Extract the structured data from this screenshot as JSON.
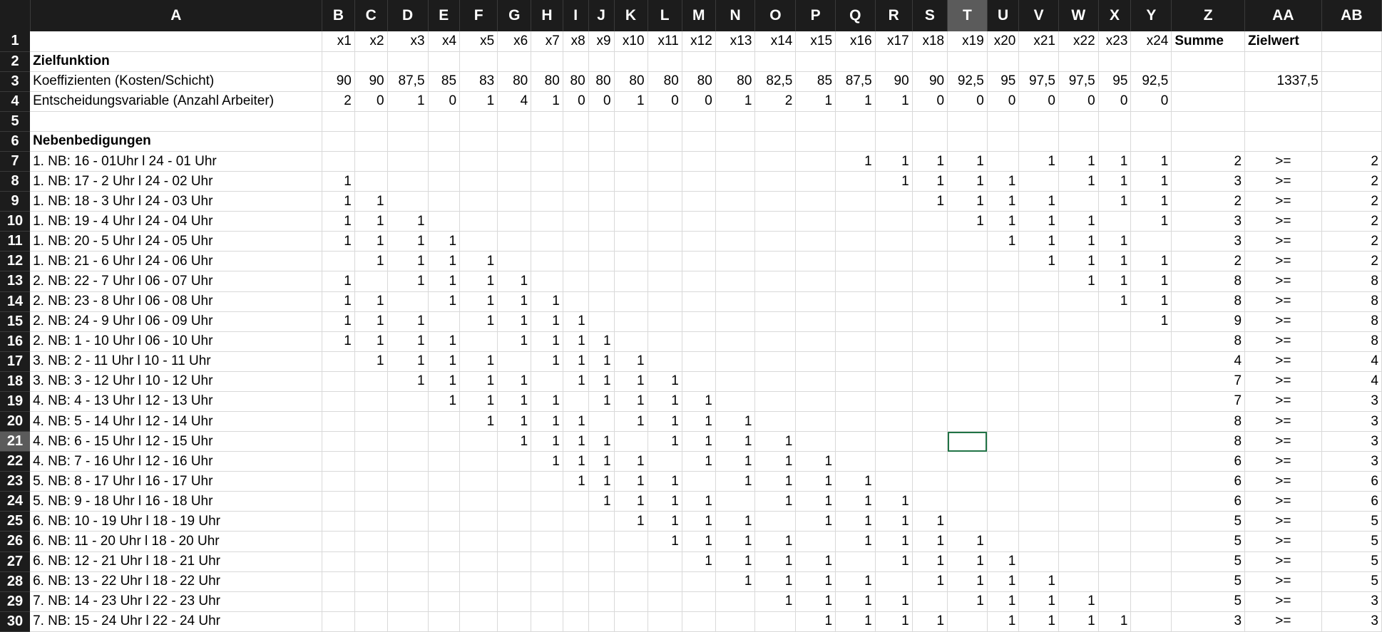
{
  "sheet": {
    "columns": [
      "A",
      "B",
      "C",
      "D",
      "E",
      "F",
      "G",
      "H",
      "I",
      "J",
      "K",
      "L",
      "M",
      "N",
      "O",
      "P",
      "Q",
      "R",
      "S",
      "T",
      "U",
      "V",
      "W",
      "X",
      "Y",
      "Z",
      "AA",
      "AB"
    ],
    "selected_column": "T",
    "selected_row": 21,
    "rows": [
      {
        "n": 1,
        "A": "",
        "B": "x1",
        "C": "x2",
        "D": "x3",
        "E": "x4",
        "F": "x5",
        "G": "x6",
        "H": "x7",
        "I": "x8",
        "J": "x9",
        "K": "x10",
        "L": "x11",
        "M": "x12",
        "N": "x13",
        "O": "x14",
        "P": "x15",
        "Q": "x16",
        "R": "x17",
        "S": "x18",
        "T": "x19",
        "U": "x20",
        "V": "x21",
        "W": "x22",
        "X": "x23",
        "Y": "x24",
        "Z": "Summe",
        "AA": "Zielwert",
        "AB": ""
      },
      {
        "n": 2,
        "A": "Zielfunktion"
      },
      {
        "n": 3,
        "A": "Koeffizienten (Kosten/Schicht)",
        "B": "90",
        "C": "90",
        "D": "87,5",
        "E": "85",
        "F": "83",
        "G": "80",
        "H": "80",
        "I": "80",
        "J": "80",
        "K": "80",
        "L": "80",
        "M": "80",
        "N": "80",
        "O": "82,5",
        "P": "85",
        "Q": "87,5",
        "R": "90",
        "S": "90",
        "T": "92,5",
        "U": "95",
        "V": "97,5",
        "W": "97,5",
        "X": "95",
        "Y": "92,5",
        "AA": "1337,5"
      },
      {
        "n": 4,
        "A": "Entscheidungsvariable (Anzahl Arbeiter)",
        "B": "2",
        "C": "0",
        "D": "1",
        "E": "0",
        "F": "1",
        "G": "4",
        "H": "1",
        "I": "0",
        "J": "0",
        "K": "1",
        "L": "0",
        "M": "0",
        "N": "1",
        "O": "2",
        "P": "1",
        "Q": "1",
        "R": "1",
        "S": "0",
        "T": "0",
        "U": "0",
        "V": "0",
        "W": "0",
        "X": "0",
        "Y": "0"
      },
      {
        "n": 5
      },
      {
        "n": 6,
        "A": "Nebenbedigungen"
      },
      {
        "n": 7,
        "A": "1. NB: 16 - 01Uhr  l 24 - 01 Uhr",
        "Q": "1",
        "R": "1",
        "S": "1",
        "T": "1",
        "V": "1",
        "W": "1",
        "X": "1",
        "Y": "1",
        "Z": "2",
        "AA": ">=",
        "AB": "2"
      },
      {
        "n": 8,
        "A": "1. NB: 17 - 2 Uhr  l 24 - 02 Uhr",
        "B": "1",
        "R": "1",
        "S": "1",
        "T": "1",
        "U": "1",
        "W": "1",
        "X": "1",
        "Y": "1",
        "Z": "3",
        "AA": ">=",
        "AB": "2"
      },
      {
        "n": 9,
        "A": "1. NB: 18 - 3 Uhr  l 24 - 03 Uhr",
        "B": "1",
        "C": "1",
        "S": "1",
        "T": "1",
        "U": "1",
        "V": "1",
        "X": "1",
        "Y": "1",
        "Z": "2",
        "AA": ">=",
        "AB": "2"
      },
      {
        "n": 10,
        "A": "1. NB: 19 - 4 Uhr  l 24 - 04 Uhr",
        "B": "1",
        "C": "1",
        "D": "1",
        "T": "1",
        "U": "1",
        "V": "1",
        "W": "1",
        "Y": "1",
        "Z": "3",
        "AA": ">=",
        "AB": "2"
      },
      {
        "n": 11,
        "A": "1. NB: 20 - 5 Uhr  l 24 - 05 Uhr",
        "B": "1",
        "C": "1",
        "D": "1",
        "E": "1",
        "U": "1",
        "V": "1",
        "W": "1",
        "X": "1",
        "Z": "3",
        "AA": ">=",
        "AB": "2"
      },
      {
        "n": 12,
        "A": "1. NB: 21 - 6 Uhr  l 24 - 06 Uhr",
        "C": "1",
        "D": "1",
        "E": "1",
        "F": "1",
        "V": "1",
        "W": "1",
        "X": "1",
        "Y": "1",
        "Z": "2",
        "AA": ">=",
        "AB": "2"
      },
      {
        "n": 13,
        "A": "2. NB: 22 - 7 Uhr  l 06 - 07 Uhr",
        "B": "1",
        "D": "1",
        "E": "1",
        "F": "1",
        "G": "1",
        "W": "1",
        "X": "1",
        "Y": "1",
        "Z": "8",
        "AA": ">=",
        "AB": "8"
      },
      {
        "n": 14,
        "A": "2. NB: 23 - 8 Uhr  l 06 - 08 Uhr",
        "B": "1",
        "C": "1",
        "E": "1",
        "F": "1",
        "G": "1",
        "H": "1",
        "X": "1",
        "Y": "1",
        "Z": "8",
        "AA": ">=",
        "AB": "8"
      },
      {
        "n": 15,
        "A": "2. NB: 24 - 9 Uhr  l 06 - 09 Uhr",
        "B": "1",
        "C": "1",
        "D": "1",
        "F": "1",
        "G": "1",
        "H": "1",
        "I": "1",
        "Y": "1",
        "Z": "9",
        "AA": ">=",
        "AB": "8"
      },
      {
        "n": 16,
        "A": "2. NB: 1 - 10 Uhr  l 06 - 10 Uhr",
        "B": "1",
        "C": "1",
        "D": "1",
        "E": "1",
        "G": "1",
        "H": "1",
        "I": "1",
        "J": "1",
        "Z": "8",
        "AA": ">=",
        "AB": "8"
      },
      {
        "n": 17,
        "A": "3. NB: 2 - 11 Uhr  l 10 - 11 Uhr",
        "C": "1",
        "D": "1",
        "E": "1",
        "F": "1",
        "H": "1",
        "I": "1",
        "J": "1",
        "K": "1",
        "Z": "4",
        "AA": ">=",
        "AB": "4"
      },
      {
        "n": 18,
        "A": "3. NB: 3 - 12 Uhr  l 10 - 12 Uhr",
        "D": "1",
        "E": "1",
        "F": "1",
        "G": "1",
        "I": "1",
        "J": "1",
        "K": "1",
        "L": "1",
        "Z": "7",
        "AA": ">=",
        "AB": "4"
      },
      {
        "n": 19,
        "A": "4. NB: 4 - 13 Uhr  l 12 - 13 Uhr",
        "E": "1",
        "F": "1",
        "G": "1",
        "H": "1",
        "J": "1",
        "K": "1",
        "L": "1",
        "M": "1",
        "Z": "7",
        "AA": ">=",
        "AB": "3"
      },
      {
        "n": 20,
        "A": "4. NB: 5 - 14 Uhr  l 12 - 14 Uhr",
        "F": "1",
        "G": "1",
        "H": "1",
        "I": "1",
        "K": "1",
        "L": "1",
        "M": "1",
        "N": "1",
        "Z": "8",
        "AA": ">=",
        "AB": "3"
      },
      {
        "n": 21,
        "A": "4. NB: 6 - 15 Uhr  l 12 - 15 Uhr",
        "G": "1",
        "H": "1",
        "I": "1",
        "J": "1",
        "L": "1",
        "M": "1",
        "N": "1",
        "O": "1",
        "Z": "8",
        "AA": ">=",
        "AB": "3"
      },
      {
        "n": 22,
        "A": "4. NB: 7 - 16 Uhr  l 12 - 16 Uhr",
        "H": "1",
        "I": "1",
        "J": "1",
        "K": "1",
        "M": "1",
        "N": "1",
        "O": "1",
        "P": "1",
        "Z": "6",
        "AA": ">=",
        "AB": "3"
      },
      {
        "n": 23,
        "A": "5. NB: 8 - 17 Uhr  l 16 - 17 Uhr",
        "I": "1",
        "J": "1",
        "K": "1",
        "L": "1",
        "N": "1",
        "O": "1",
        "P": "1",
        "Q": "1",
        "Z": "6",
        "AA": ">=",
        "AB": "6"
      },
      {
        "n": 24,
        "A": "5. NB: 9 - 18 Uhr  l 16 - 18 Uhr",
        "J": "1",
        "K": "1",
        "L": "1",
        "M": "1",
        "O": "1",
        "P": "1",
        "Q": "1",
        "R": "1",
        "Z": "6",
        "AA": ">=",
        "AB": "6"
      },
      {
        "n": 25,
        "A": "6. NB: 10 - 19 Uhr  l 18 - 19 Uhr",
        "K": "1",
        "L": "1",
        "M": "1",
        "N": "1",
        "P": "1",
        "Q": "1",
        "R": "1",
        "S": "1",
        "Z": "5",
        "AA": ">=",
        "AB": "5"
      },
      {
        "n": 26,
        "A": "6. NB: 11 - 20 Uhr  l 18 - 20 Uhr",
        "L": "1",
        "M": "1",
        "N": "1",
        "O": "1",
        "Q": "1",
        "R": "1",
        "S": "1",
        "T": "1",
        "Z": "5",
        "AA": ">=",
        "AB": "5"
      },
      {
        "n": 27,
        "A": "6. NB: 12 - 21 Uhr  l 18 - 21 Uhr",
        "M": "1",
        "N": "1",
        "O": "1",
        "P": "1",
        "R": "1",
        "S": "1",
        "T": "1",
        "U": "1",
        "Z": "5",
        "AA": ">=",
        "AB": "5"
      },
      {
        "n": 28,
        "A": "6. NB: 13 - 22 Uhr  l 18 - 22 Uhr",
        "N": "1",
        "O": "1",
        "P": "1",
        "Q": "1",
        "S": "1",
        "T": "1",
        "U": "1",
        "V": "1",
        "Z": "5",
        "AA": ">=",
        "AB": "5"
      },
      {
        "n": 29,
        "A": "7. NB: 14 - 23 Uhr  l 22 - 23 Uhr",
        "O": "1",
        "P": "1",
        "Q": "1",
        "R": "1",
        "T": "1",
        "U": "1",
        "V": "1",
        "W": "1",
        "Z": "5",
        "AA": ">=",
        "AB": "3"
      },
      {
        "n": 30,
        "A": "7. NB: 15 - 24 Uhr  l 22 - 24 Uhr",
        "P": "1",
        "Q": "1",
        "R": "1",
        "S": "1",
        "U": "1",
        "V": "1",
        "W": "1",
        "X": "1",
        "Z": "3",
        "AA": ">=",
        "AB": "3"
      }
    ]
  }
}
